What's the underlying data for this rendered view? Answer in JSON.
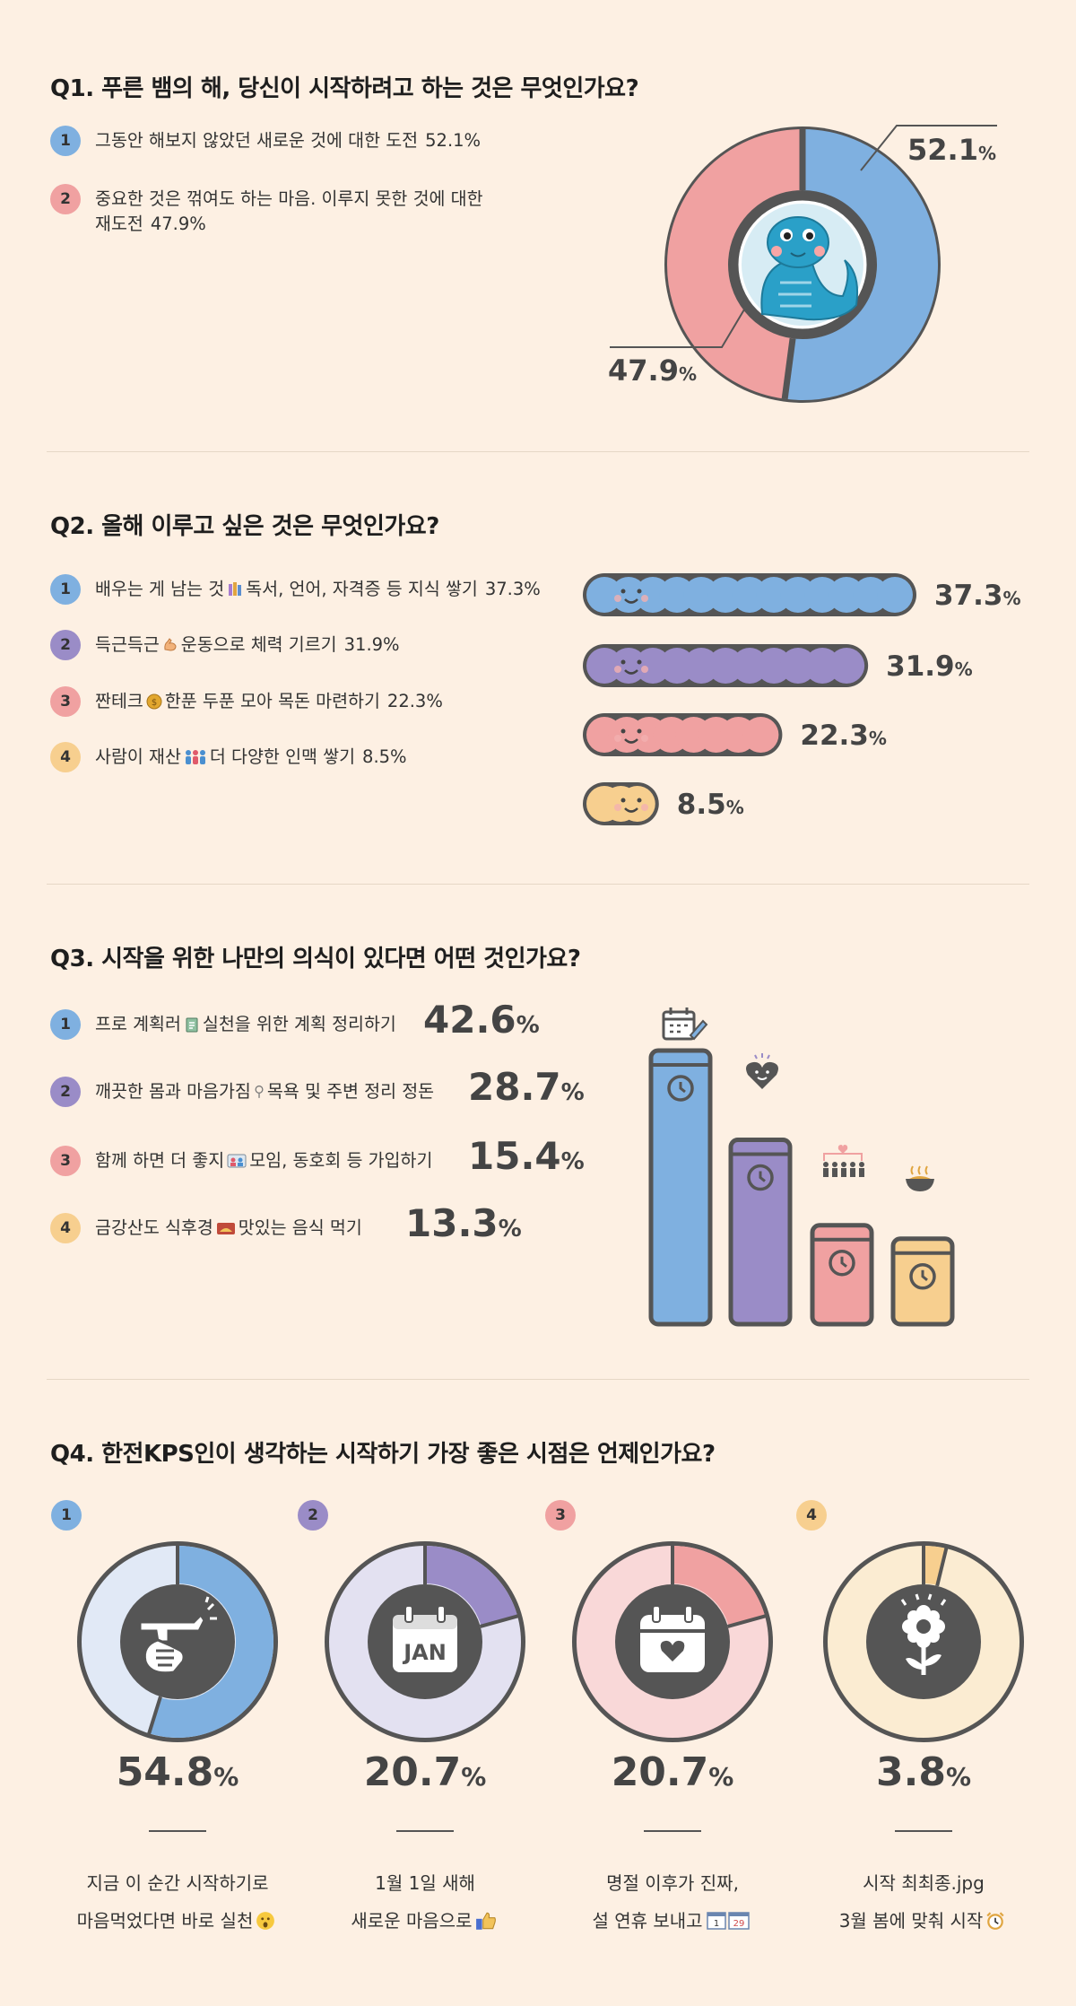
{
  "q1": {
    "title": "Q1. 푸른 뱀의 해, 당신이 시작하려고 하는 것은 무엇인가요?",
    "items": [
      {
        "num": "1",
        "text": "그동안 해보지 않았던 새로운 것에 대한 도전",
        "pct": "52.1%"
      },
      {
        "num": "2",
        "text": "중요한 것은 꺾여도 하는 마음. 이루지 못한 것에 대한",
        "text2": "재도전",
        "pct": "47.9%"
      }
    ],
    "labels": {
      "a": "52.1",
      "b": "47.9",
      "unit": "%"
    }
  },
  "q2": {
    "title": "Q2. 올해 이루고 싶은 것은 무엇인가요?",
    "items": [
      {
        "num": "1",
        "text_a": "배우는 게 남는 것",
        "text_b": "독서, 언어, 자격증 등 지식 쌓기",
        "pct": "37.3%"
      },
      {
        "num": "2",
        "text_a": "득근득근",
        "text_b": "운동으로 체력 기르기",
        "pct": "31.9%"
      },
      {
        "num": "3",
        "text_a": "짠테크",
        "text_b": "한푼 두푼 모아 목돈 마련하기",
        "pct": "22.3%"
      },
      {
        "num": "4",
        "text_a": "사람이 재산",
        "text_b": "더 다양한 인맥 쌓기",
        "pct": "8.5%"
      }
    ],
    "labels": [
      "37.3",
      "31.9",
      "22.3",
      "8.5"
    ],
    "unit": "%"
  },
  "q3": {
    "title": "Q3. 시작을 위한 나만의 의식이 있다면 어떤 것인가요?",
    "items": [
      {
        "num": "1",
        "text_a": "프로 계획러",
        "text_b": "실천을 위한 계획 정리하기",
        "pct": "42.6"
      },
      {
        "num": "2",
        "text_a": "깨끗한 몸과 마음가짐",
        "text_b": "목욕 및 주변 정리 정돈",
        "pct": "28.7"
      },
      {
        "num": "3",
        "text_a": "함께 하면 더 좋지",
        "text_b": "모임, 동호회 등 가입하기",
        "pct": "15.4"
      },
      {
        "num": "4",
        "text_a": "금강산도 식후경",
        "text_b": "맛있는 음식 먹기",
        "pct": "13.3"
      }
    ],
    "unit": "%"
  },
  "q4": {
    "title": "Q4. 한전KPS인이 생각하는 시작하기 가장 좋은 시점은 언제인가요?",
    "items": [
      {
        "num": "1",
        "pct": "54.8",
        "line1": "지금 이 순간 시작하기로",
        "line2": "마음먹었다면 바로 실천"
      },
      {
        "num": "2",
        "pct": "20.7",
        "line1": "1월 1일 새해",
        "line2": "새로운 마음으로"
      },
      {
        "num": "3",
        "pct": "20.7",
        "line1": "명절 이후가 진짜,",
        "line2": "설 연휴 보내고"
      },
      {
        "num": "4",
        "pct": "3.8",
        "line1": "시작 최최종.jpg",
        "line2": "3월 봄에 맞춰 시작"
      }
    ],
    "unit": "%",
    "icon_text_jan": "JAN",
    "cal_a": "1",
    "cal_b": "29"
  },
  "chart_data": [
    {
      "type": "pie",
      "categories": [
        "그동안 해보지 않았던 새로운 것에 대한 도전",
        "중요한 것은 꺾여도 하는 마음. 이루지 못한 것에 대한 재도전"
      ],
      "values": [
        52.1,
        47.9
      ],
      "colors": [
        "#7fb0e0",
        "#f0a1a1"
      ]
    },
    {
      "type": "bar",
      "orientation": "horizontal",
      "categories": [
        "배우는 게 남는 것",
        "득근득근",
        "짠테크",
        "사람이 재산"
      ],
      "values": [
        37.3,
        31.9,
        22.3,
        8.5
      ],
      "colors": [
        "#7fb0e0",
        "#9a8cc7",
        "#f0a1a1",
        "#f7cf8f"
      ]
    },
    {
      "type": "bar",
      "orientation": "vertical",
      "categories": [
        "프로 계획러",
        "깨끗한 몸과 마음가짐",
        "함께 하면 더 좋지",
        "금강산도 식후경"
      ],
      "values": [
        42.6,
        28.7,
        15.4,
        13.3
      ],
      "colors": [
        "#7fb0e0",
        "#9a8cc7",
        "#f0a1a1",
        "#f7cf8f"
      ]
    },
    {
      "type": "pie",
      "categories": [
        "지금 이 순간",
        "1월 1일 새해",
        "설 연휴 보내고",
        "3월 봄"
      ],
      "values": [
        54.8,
        20.7,
        20.7,
        3.8
      ],
      "colors": [
        "#7fb0e0",
        "#9a8cc7",
        "#f0a1a1",
        "#f7cf8f"
      ]
    }
  ]
}
